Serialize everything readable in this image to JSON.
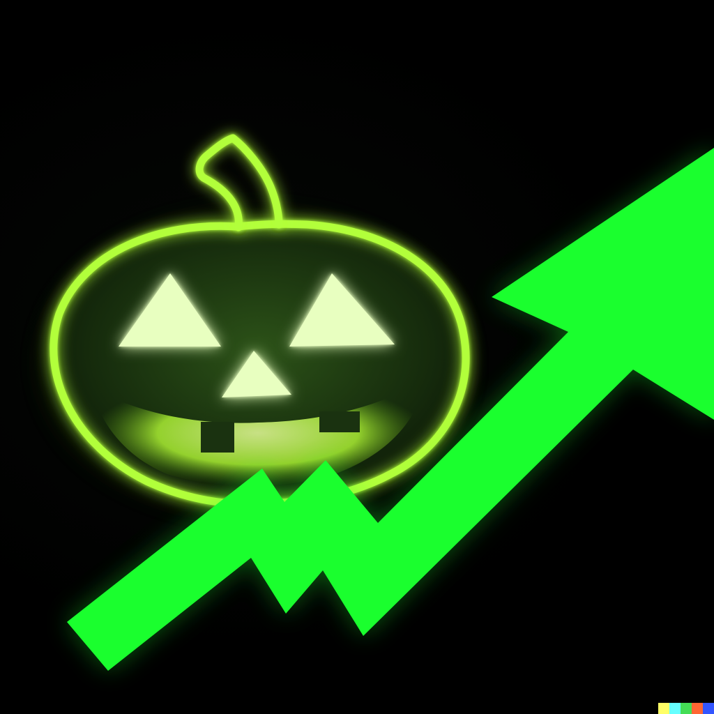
{
  "scene": {
    "background_color": "#000000",
    "glow_color": "#aaff33",
    "arrow_color": "#1aff2e",
    "face_color": "#1e3a12",
    "eye_color": "#e8ffc0"
  },
  "icons": [
    "jack-o-lantern-icon",
    "trend-up-arrow-icon"
  ],
  "watermark": {
    "colors": [
      "#ffff66",
      "#66ffff",
      "#44dd55",
      "#ff6633",
      "#3355ff"
    ]
  }
}
